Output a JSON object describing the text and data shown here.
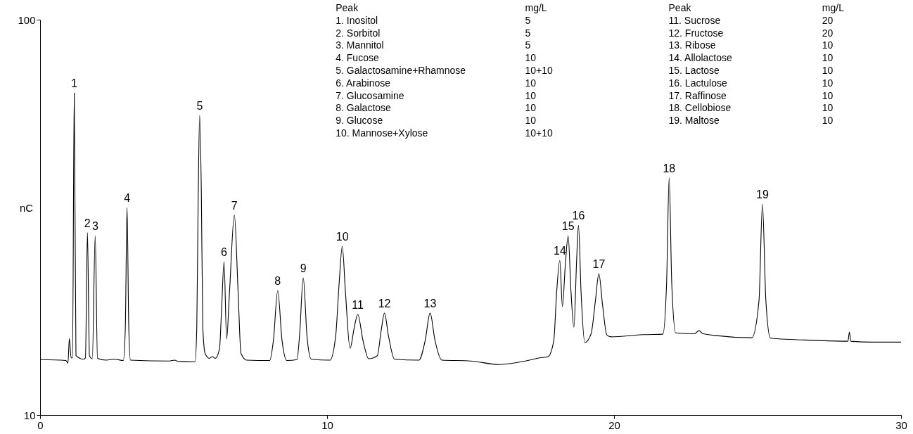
{
  "chart_data": {
    "type": "line",
    "ylabel": "nC",
    "xlim": [
      0,
      30
    ],
    "xticks": [
      0,
      10,
      20,
      30
    ],
    "ylim": [
      10,
      100
    ],
    "yticks": [
      10,
      100
    ],
    "grid": false,
    "series": [
      {
        "color": "#000000",
        "x": [
          0,
          0.9,
          0.97,
          1.02,
          1.08,
          1.13,
          1.19,
          1.25,
          1.5,
          1.58,
          1.65,
          1.72,
          1.82,
          1.92,
          2.0,
          2.3,
          2.6,
          2.9,
          2.97,
          3.03,
          3.09,
          3.15,
          4.5,
          4.7,
          4.8,
          5.4,
          5.46,
          5.51,
          5.56,
          5.62,
          5.67,
          5.75,
          5.9,
          6.0,
          6.1,
          6.25,
          6.33,
          6.41,
          6.5,
          6.6,
          6.77,
          6.9,
          7.0,
          7.2,
          8.0,
          8.13,
          8.28,
          8.43,
          8.6,
          8.95,
          9.04,
          9.17,
          9.3,
          9.45,
          10.1,
          10.3,
          10.42,
          10.53,
          10.64,
          10.8,
          10.95,
          11.07,
          11.25,
          11.45,
          11.75,
          11.88,
          12.0,
          12.14,
          12.35,
          13.2,
          13.42,
          13.59,
          13.76,
          14.0,
          15.0,
          16.0,
          17.0,
          17.4,
          17.7,
          17.9,
          18.0,
          18.11,
          18.2,
          18.3,
          18.4,
          18.5,
          18.6,
          18.7,
          18.76,
          18.85,
          18.98,
          19.2,
          19.35,
          19.47,
          19.6,
          19.75,
          19.9,
          21.0,
          21.7,
          21.83,
          21.92,
          22.01,
          22.15,
          22.8,
          22.96,
          23.1,
          24.8,
          25.05,
          25.17,
          25.29,
          25.45,
          27.0,
          28.15,
          28.2,
          28.25,
          29.0,
          30
        ],
        "values": [
          22.6,
          22.4,
          21.8,
          27.4,
          23.0,
          23.0,
          83.3,
          23.5,
          22.7,
          23.0,
          51.5,
          23.5,
          22.8,
          50.8,
          22.9,
          22.5,
          22.7,
          22.4,
          30,
          57.2,
          30,
          22.5,
          22.3,
          22.5,
          22.2,
          22.1,
          30,
          60,
          78.2,
          60,
          30,
          24,
          22.9,
          23.3,
          22.9,
          25,
          35,
          44.9,
          27.3,
          38,
          55.5,
          38,
          24,
          22.5,
          22.4,
          27,
          38.3,
          27,
          22.4,
          22.6,
          28,
          41.2,
          28,
          22.7,
          22.5,
          28,
          40,
          48.4,
          38,
          25.2,
          30,
          32.9,
          27,
          22.8,
          23.5,
          29,
          33.2,
          28,
          22.7,
          22.5,
          27,
          33.2,
          27,
          22.5,
          22.3,
          21.5,
          22.4,
          23.0,
          23.3,
          27,
          38,
          45.2,
          34.7,
          44,
          50.8,
          38,
          30.0,
          46,
          53.2,
          38,
          26.5,
          28.5,
          36,
          42.2,
          35,
          28.2,
          27.8,
          28.3,
          28.4,
          40,
          64.0,
          40,
          28.7,
          28.5,
          29.2,
          28.5,
          27.6,
          36,
          58.0,
          36,
          27.5,
          27.0,
          26.8,
          28.9,
          26.8,
          26.6,
          26.6
        ]
      }
    ],
    "annotations": [
      {
        "text": "1",
        "x": 1.19,
        "y": 83.3
      },
      {
        "text": "2",
        "x": 1.65,
        "y": 51.5
      },
      {
        "text": "3",
        "x": 1.92,
        "y": 50.8
      },
      {
        "text": "4",
        "x": 3.03,
        "y": 57.2
      },
      {
        "text": "5",
        "x": 5.56,
        "y": 78.2
      },
      {
        "text": "6",
        "x": 6.41,
        "y": 44.9
      },
      {
        "text": "7",
        "x": 6.77,
        "y": 55.5
      },
      {
        "text": "8",
        "x": 8.28,
        "y": 38.3
      },
      {
        "text": "9",
        "x": 9.17,
        "y": 41.2
      },
      {
        "text": "10",
        "x": 10.53,
        "y": 48.4
      },
      {
        "text": "11",
        "x": 11.07,
        "y": 32.9
      },
      {
        "text": "12",
        "x": 12.0,
        "y": 33.2
      },
      {
        "text": "13",
        "x": 13.59,
        "y": 33.2
      },
      {
        "text": "14",
        "x": 18.11,
        "y": 45.2
      },
      {
        "text": "15",
        "x": 18.4,
        "y": 50.8
      },
      {
        "text": "16",
        "x": 18.76,
        "y": 53.2
      },
      {
        "text": "17",
        "x": 19.47,
        "y": 42.2
      },
      {
        "text": "18",
        "x": 21.92,
        "y": 64.0
      },
      {
        "text": "19",
        "x": 25.17,
        "y": 58.0
      },
      "Peak",
      "mg/L",
      "1. Inositol",
      "5",
      "2. Sorbitol",
      "5",
      "3. Mannitol",
      "5",
      "4. Fucose",
      "10",
      "5. Galactosamine+Rhamnose",
      "10+10",
      "6. Arabinose",
      "10",
      "7. Glucosamine",
      "10",
      "8. Galactose",
      "10",
      "9. Glucose",
      "10",
      "10. Mannose+Xylose",
      "10+10",
      "Peak",
      "mg/L",
      "11. Sucrose",
      "20",
      "12. Fructose",
      "20",
      "13. Ribose",
      "10",
      "14. Allolactose",
      "10",
      "15. Lactose",
      "10",
      "16. Lactulose",
      "10",
      "17. Raffinose",
      "10",
      "18. Cellobiose",
      "10",
      "19. Maltose",
      "10"
    ]
  }
}
